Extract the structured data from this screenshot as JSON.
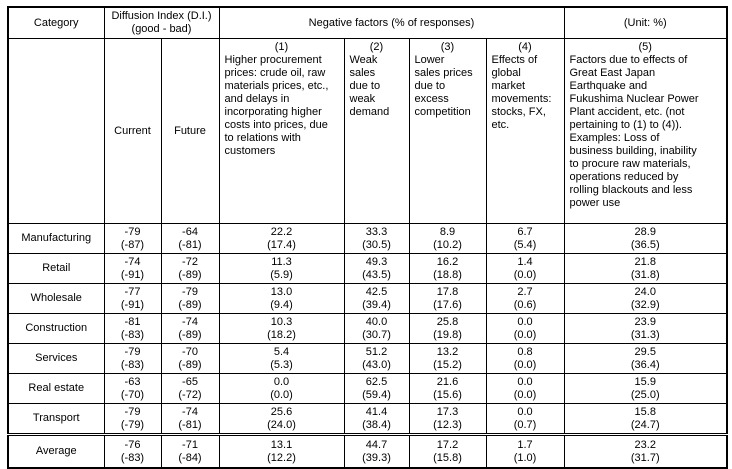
{
  "table": {
    "header": {
      "category_label": "Category",
      "di_line1": "Diffusion Index (D.I.)",
      "di_line2": "(good - bad)",
      "negative_factors_label": "Negative factors (% of responses)",
      "unit_label": "(Unit: %)",
      "current_label": "Current",
      "future_label": "Future"
    },
    "factors": [
      {
        "num": "(1)",
        "desc": "Higher procurement\nprices: crude oil, raw\nmaterials prices, etc.,\nand delays in\nincorporating higher\ncosts into prices, due\nto relations with\ncustomers"
      },
      {
        "num": "(2)",
        "desc": "Weak\nsales\ndue to\nweak\ndemand"
      },
      {
        "num": "(3)",
        "desc": "Lower\nsales prices\ndue to\nexcess\ncompetition"
      },
      {
        "num": "(4)",
        "desc": "Effects of\nglobal\nmarket\nmovements:\nstocks, FX,\netc."
      },
      {
        "num": "(5)",
        "desc": "Factors due to effects of\nGreat East Japan\nEarthquake and\nFukushima Nuclear Power\nPlant accident, etc. (not\npertaining to (1) to (4)).\nExamples: Loss of\nbusiness building, inability\nto procure raw materials,\noperations reduced by\nrolling blackouts and less\npower use"
      }
    ],
    "rows": [
      {
        "category": "Manufacturing",
        "divider_above": false,
        "cells": [
          [
            "-79",
            "(-87)"
          ],
          [
            "-64",
            "(-81)"
          ],
          [
            "22.2",
            "(17.4)"
          ],
          [
            "33.3",
            "(30.5)"
          ],
          [
            "8.9",
            "(10.2)"
          ],
          [
            "6.7",
            "(5.4)"
          ],
          [
            "28.9",
            "(36.5)"
          ]
        ]
      },
      {
        "category": "Retail",
        "divider_above": false,
        "cells": [
          [
            "-74",
            "(-91)"
          ],
          [
            "-72",
            "(-89)"
          ],
          [
            "11.3",
            "(5.9)"
          ],
          [
            "49.3",
            "(43.5)"
          ],
          [
            "16.2",
            "(18.8)"
          ],
          [
            "1.4",
            "(0.0)"
          ],
          [
            "21.8",
            "(31.8)"
          ]
        ]
      },
      {
        "category": "Wholesale",
        "divider_above": false,
        "cells": [
          [
            "-77",
            "(-91)"
          ],
          [
            "-79",
            "(-89)"
          ],
          [
            "13.0",
            "(9.4)"
          ],
          [
            "42.5",
            "(39.4)"
          ],
          [
            "17.8",
            "(17.6)"
          ],
          [
            "2.7",
            "(0.6)"
          ],
          [
            "24.0",
            "(32.9)"
          ]
        ]
      },
      {
        "category": "Construction",
        "divider_above": false,
        "cells": [
          [
            "-81",
            "(-83)"
          ],
          [
            "-74",
            "(-89)"
          ],
          [
            "10.3",
            "(18.2)"
          ],
          [
            "40.0",
            "(30.7)"
          ],
          [
            "25.8",
            "(19.8)"
          ],
          [
            "0.0",
            "(0.0)"
          ],
          [
            "23.9",
            "(31.3)"
          ]
        ]
      },
      {
        "category": "Services",
        "divider_above": false,
        "cells": [
          [
            "-79",
            "(-83)"
          ],
          [
            "-70",
            "(-89)"
          ],
          [
            "5.4",
            "(5.3)"
          ],
          [
            "51.2",
            "(43.0)"
          ],
          [
            "13.2",
            "(15.2)"
          ],
          [
            "0.8",
            "(0.0)"
          ],
          [
            "29.5",
            "(36.4)"
          ]
        ]
      },
      {
        "category": "Real estate",
        "divider_above": false,
        "cells": [
          [
            "-63",
            "(-70)"
          ],
          [
            "-65",
            "(-72)"
          ],
          [
            "0.0",
            "(0.0)"
          ],
          [
            "62.5",
            "(59.4)"
          ],
          [
            "21.6",
            "(15.6)"
          ],
          [
            "0.0",
            "(0.0)"
          ],
          [
            "15.9",
            "(25.0)"
          ]
        ]
      },
      {
        "category": "Transport",
        "divider_above": false,
        "cells": [
          [
            "-79",
            "(-79)"
          ],
          [
            "-74",
            "(-81)"
          ],
          [
            "25.6",
            "(24.0)"
          ],
          [
            "41.4",
            "(38.4)"
          ],
          [
            "17.3",
            "(12.3)"
          ],
          [
            "0.0",
            "(0.7)"
          ],
          [
            "15.8",
            "(24.7)"
          ]
        ]
      },
      {
        "category": "Average",
        "divider_above": true,
        "cells": [
          [
            "-76",
            "(-83)"
          ],
          [
            "-71",
            "(-84)"
          ],
          [
            "13.1",
            "(12.2)"
          ],
          [
            "44.7",
            "(39.3)"
          ],
          [
            "17.2",
            "(15.8)"
          ],
          [
            "1.7",
            "(1.0)"
          ],
          [
            "23.2",
            "(31.7)"
          ]
        ]
      }
    ]
  }
}
